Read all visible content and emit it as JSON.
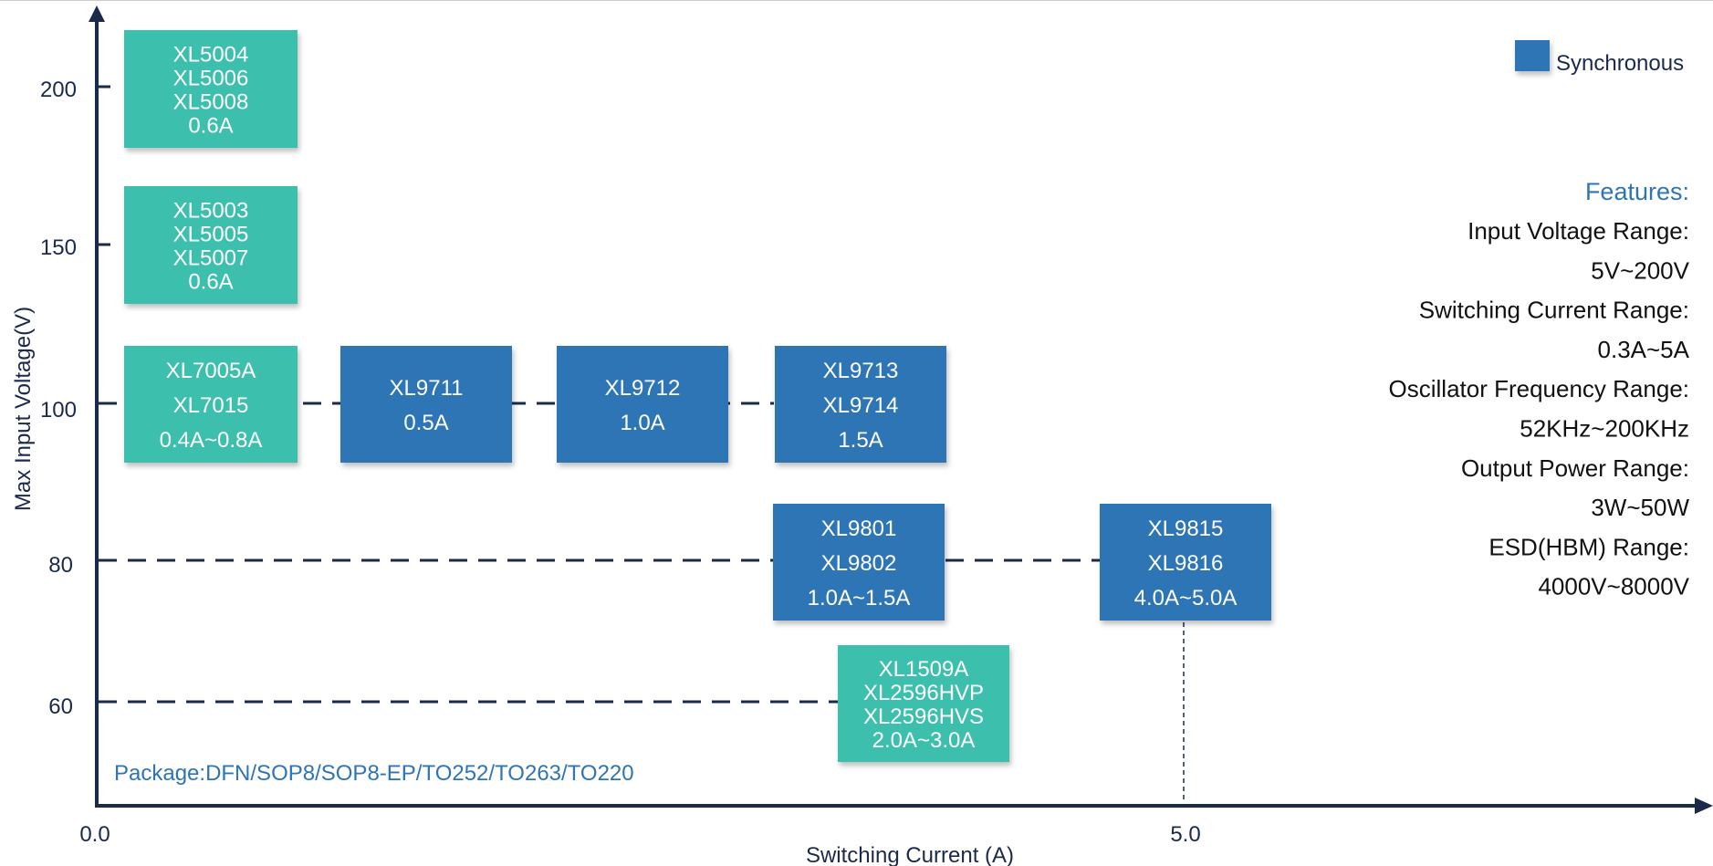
{
  "colors": {
    "synchronous": "#2e75b6",
    "standard": "#3cbfad",
    "axis": "#1b2a4a",
    "features_title": "#2e75b6",
    "package_text": "#2e75b6"
  },
  "legend": {
    "synchronous_label": "Synchronous"
  },
  "package_note": "Package:DFN/SOP8/SOP8-EP/TO252/TO263/TO220",
  "features": {
    "title": "Features:",
    "lines": [
      "Input Voltage Range:",
      "5V~200V",
      "Switching Current Range:",
      "0.3A~5A",
      "Oscillator Frequency Range:",
      "52KHz~200KHz",
      "Output Power Range:",
      "3W~50W",
      "ESD(HBM) Range:",
      "4000V~8000V"
    ]
  },
  "chart_data": {
    "type": "table",
    "xlabel": "Switching Current (A)",
    "ylabel": "Max Input Voltage(V)",
    "x_ticks": [
      "0.0",
      "5.0"
    ],
    "y_ticks": [
      "60",
      "80",
      "100",
      "150",
      "200"
    ],
    "products": [
      {
        "lines": [
          "XL5004",
          "XL5006",
          "XL5008",
          "0.6A"
        ],
        "voltage": "200",
        "synchronous": false
      },
      {
        "lines": [
          "XL5003",
          "XL5005",
          "XL5007",
          "0.6A"
        ],
        "voltage": "150",
        "synchronous": false
      },
      {
        "lines": [
          "XL7005A",
          "XL7015",
          "0.4A~0.8A"
        ],
        "voltage": "100",
        "synchronous": false
      },
      {
        "lines": [
          "XL9711",
          "0.5A"
        ],
        "voltage": "100",
        "synchronous": true
      },
      {
        "lines": [
          "XL9712",
          "1.0A"
        ],
        "voltage": "100",
        "synchronous": true
      },
      {
        "lines": [
          "XL9713",
          "XL9714",
          "1.5A"
        ],
        "voltage": "100",
        "synchronous": true
      },
      {
        "lines": [
          "XL9801",
          "XL9802",
          "1.0A~1.5A"
        ],
        "voltage": "80",
        "synchronous": true
      },
      {
        "lines": [
          "XL9815",
          "XL9816",
          "4.0A~5.0A"
        ],
        "voltage": "80",
        "synchronous": true
      },
      {
        "lines": [
          "XL1509A",
          "XL2596HVP",
          "XL2596HVS",
          "2.0A~3.0A"
        ],
        "voltage": "60",
        "synchronous": false
      }
    ]
  }
}
